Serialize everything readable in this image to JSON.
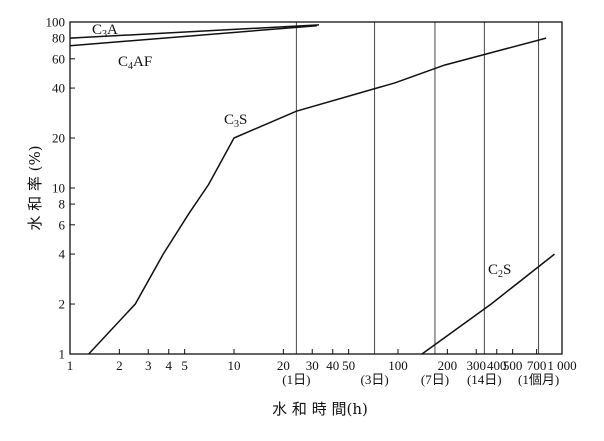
{
  "chart_data": {
    "type": "line",
    "title": "",
    "xlabel": "水 和 時 間(h)",
    "ylabel": "水 和 率 (%)",
    "xscale": "log",
    "yscale": "log",
    "xlim": [
      1,
      1000
    ],
    "ylim": [
      1,
      100
    ],
    "x_ticks": [
      {
        "value": 1,
        "label": "1"
      },
      {
        "value": 2,
        "label": "2"
      },
      {
        "value": 3,
        "label": "3"
      },
      {
        "value": 4,
        "label": "4"
      },
      {
        "value": 5,
        "label": "5"
      },
      {
        "value": 10,
        "label": "10"
      },
      {
        "value": 20,
        "label": "20"
      },
      {
        "value": 30,
        "label": "30"
      },
      {
        "value": 40,
        "label": "40"
      },
      {
        "value": 50,
        "label": "50"
      },
      {
        "value": 100,
        "label": "100"
      },
      {
        "value": 200,
        "label": "200"
      },
      {
        "value": 300,
        "label": "300"
      },
      {
        "value": 400,
        "label": "400"
      },
      {
        "value": 500,
        "label": "500"
      },
      {
        "value": 700,
        "label": "700"
      },
      {
        "value": 1000,
        "label": "1 000"
      }
    ],
    "y_ticks": [
      1,
      2,
      4,
      6,
      8,
      10,
      20,
      40,
      60,
      80,
      100
    ],
    "reference_lines": [
      {
        "x": 24,
        "label": "(1日)"
      },
      {
        "x": 72,
        "label": "(3日)"
      },
      {
        "x": 168,
        "label": "(7日)"
      },
      {
        "x": 336,
        "label": "(14日)"
      },
      {
        "x": 720,
        "label": "(1個月)"
      }
    ],
    "series": [
      {
        "name": "C3A",
        "label_main": "C",
        "label_sub": "3",
        "label_tail": "A",
        "points": [
          [
            1,
            80
          ],
          [
            33,
            96
          ]
        ]
      },
      {
        "name": "C4AF",
        "label_main": "C",
        "label_sub": "4",
        "label_tail": "AF",
        "points": [
          [
            1,
            72
          ],
          [
            32,
            95
          ]
        ]
      },
      {
        "name": "C3S",
        "label_main": "C",
        "label_sub": "3",
        "label_tail": "S",
        "points": [
          [
            1.3,
            1
          ],
          [
            2.5,
            2
          ],
          [
            3.7,
            4
          ],
          [
            5.3,
            7
          ],
          [
            7,
            10.5
          ],
          [
            10,
            20
          ],
          [
            24,
            29
          ],
          [
            96,
            43
          ],
          [
            192,
            55
          ],
          [
            384,
            66
          ],
          [
            800,
            80
          ]
        ]
      },
      {
        "name": "C2S",
        "label_main": "C",
        "label_sub": "2",
        "label_tail": "S",
        "points": [
          [
            140,
            1
          ],
          [
            370,
            2
          ],
          [
            900,
            4
          ]
        ]
      }
    ]
  }
}
